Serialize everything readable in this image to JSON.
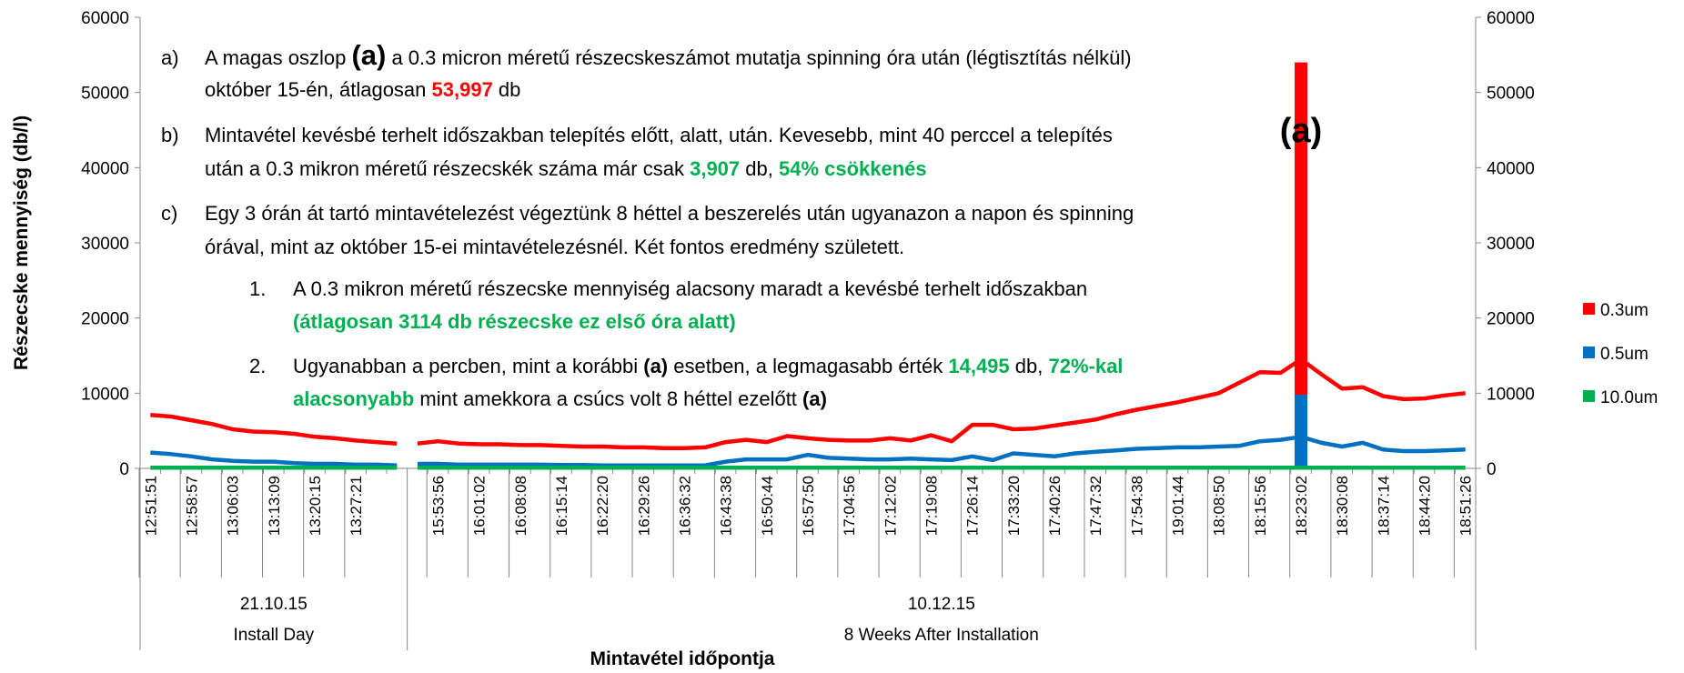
{
  "chart_data": {
    "type": "line",
    "xlabel": "Mintavétel időpontja",
    "ylabel": "Részecske mennyiség (db/l)",
    "ylim": [
      0,
      60000
    ],
    "yticks": [
      0,
      10000,
      20000,
      30000,
      40000,
      50000,
      60000
    ],
    "y2lim": [
      0,
      60000
    ],
    "y2ticks": [
      0,
      10000,
      20000,
      30000,
      40000,
      50000,
      60000
    ],
    "legend": "right",
    "groups": [
      {
        "name": "21.10.15",
        "label": "Install Day",
        "categories": [
          "12:51:51",
          null,
          "12:58:57",
          null,
          "13:06:03",
          null,
          "13:13:09",
          null,
          "13:20:15",
          null,
          "13:27:21",
          null,
          null
        ]
      },
      {
        "name": "10.12.15",
        "label": "8 Weeks After Installation",
        "categories": [
          null,
          "15:53:56",
          null,
          "16:01:02",
          null,
          "16:08:08",
          null,
          "16:15:14",
          null,
          "16:22:20",
          null,
          "16:29:26",
          null,
          "16:36:32",
          null,
          "16:43:38",
          null,
          "16:50:44",
          null,
          "16:57:50",
          null,
          "17:04:56",
          null,
          "17:12:02",
          null,
          "17:19:08",
          null,
          "17:26:14",
          null,
          "17:33:20",
          null,
          "17:40:26",
          null,
          "17:47:32",
          null,
          "17:54:38",
          null,
          "19:01:44",
          null,
          "18:08:50",
          null,
          "18:15:56",
          null,
          "18:23:02",
          null,
          "18:30:08",
          null,
          "18:37:14",
          null,
          "18:44:20",
          null,
          "18:51:26"
        ]
      }
    ],
    "series": [
      {
        "name": "0.3um",
        "color": "#ff0000",
        "values": [
          7100,
          6900,
          6400,
          5900,
          5200,
          4900,
          4800,
          4600,
          4200,
          4000,
          3700,
          3500,
          3300,
          3300,
          3600,
          3300,
          3200,
          3200,
          3100,
          3100,
          3000,
          2900,
          2900,
          2800,
          2800,
          2700,
          2700,
          2800,
          3500,
          3800,
          3500,
          4300,
          4000,
          3800,
          3700,
          3700,
          4000,
          3700,
          4400,
          3600,
          5800,
          5800,
          5200,
          5300,
          5700,
          6100,
          6500,
          7200,
          7800,
          8300,
          8800,
          9400,
          10000,
          11400,
          12800,
          12700,
          14500,
          12500,
          10600,
          10800,
          9600,
          9200,
          9300,
          9700,
          10000
        ],
        "bar_values": [
          null,
          null,
          null,
          null,
          null,
          null,
          null,
          null,
          null,
          null,
          null,
          null,
          null,
          null,
          null,
          null,
          null,
          null,
          null,
          null,
          null,
          null,
          null,
          null,
          null,
          null,
          null,
          null,
          null,
          null,
          null,
          null,
          null,
          null,
          null,
          null,
          null,
          null,
          null,
          null,
          null,
          null,
          null,
          null,
          null,
          null,
          null,
          null,
          null,
          null,
          null,
          null,
          null,
          null,
          null,
          null,
          53997,
          null,
          null,
          null,
          null,
          null,
          null,
          null,
          null
        ]
      },
      {
        "name": "0.5um",
        "color": "#0070c0",
        "values": [
          2100,
          1900,
          1600,
          1200,
          1000,
          900,
          900,
          700,
          600,
          600,
          500,
          500,
          400,
          600,
          600,
          500,
          500,
          500,
          500,
          500,
          450,
          450,
          400,
          400,
          400,
          400,
          400,
          400,
          900,
          1200,
          1200,
          1200,
          1800,
          1400,
          1300,
          1200,
          1200,
          1300,
          1200,
          1100,
          1600,
          1100,
          2000,
          1800,
          1600,
          2000,
          2200,
          2400,
          2600,
          2700,
          2800,
          2800,
          2900,
          3000,
          3600,
          3800,
          4200,
          3400,
          2900,
          3400,
          2500,
          2300,
          2300,
          2400,
          2500
        ],
        "bar_values": [
          null,
          null,
          null,
          null,
          null,
          null,
          null,
          null,
          null,
          null,
          null,
          null,
          null,
          null,
          null,
          null,
          null,
          null,
          null,
          null,
          null,
          null,
          null,
          null,
          null,
          null,
          null,
          null,
          null,
          null,
          null,
          null,
          null,
          null,
          null,
          null,
          null,
          null,
          null,
          null,
          null,
          null,
          null,
          null,
          null,
          null,
          null,
          null,
          null,
          null,
          null,
          null,
          null,
          null,
          null,
          null,
          9800,
          null,
          null,
          null,
          null,
          null,
          null,
          null,
          null
        ]
      },
      {
        "name": "10.0um",
        "color": "#00b050",
        "values": [
          100,
          100,
          100,
          100,
          100,
          100,
          100,
          100,
          100,
          100,
          100,
          100,
          100,
          100,
          100,
          100,
          100,
          100,
          100,
          100,
          100,
          100,
          100,
          100,
          100,
          100,
          100,
          100,
          100,
          100,
          100,
          100,
          100,
          100,
          100,
          100,
          100,
          100,
          100,
          100,
          100,
          100,
          100,
          100,
          100,
          100,
          100,
          100,
          100,
          100,
          100,
          100,
          100,
          100,
          100,
          100,
          100,
          100,
          100,
          100,
          100,
          100,
          100,
          100,
          100
        ]
      }
    ],
    "bar_label": "(a)",
    "notes": [
      {
        "marker": "a)",
        "lines": [
          [
            {
              "text": "A magas oszlop "
            },
            {
              "text": "(a)",
              "style": "bold-large"
            },
            {
              "text": " a 0.3 micron méretű részecskeszámot mutatja spinning óra után (légtisztítás nélkül)"
            }
          ],
          [
            {
              "text": "október 15-én, átlagosan "
            },
            {
              "text": "53,997",
              "style": "bold-red"
            },
            {
              "text": " db"
            }
          ]
        ]
      },
      {
        "marker": "b)",
        "lines": [
          [
            {
              "text": "Mintavétel kevésbé terhelt időszakban telepítés előtt, alatt, után. Kevesebb, mint 40 perccel a telepítés"
            }
          ],
          [
            {
              "text": "után a 0.3 mikron méretű részecskék száma már csak "
            },
            {
              "text": "3,907",
              "style": "bold-green"
            },
            {
              "text": " db, "
            },
            {
              "text": "54% csökkenés",
              "style": "bold-green"
            }
          ]
        ]
      },
      {
        "marker": "c)",
        "lines": [
          [
            {
              "text": "Egy 3 órán át tartó mintavételezést végeztünk 8 héttel a beszerelés után ugyanazon a napon és spinning"
            }
          ],
          [
            {
              "text": "órával, mint az október 15-ei mintavételezésnél. Két fontos eredmény született."
            }
          ]
        ],
        "items": [
          {
            "marker": "1.",
            "lines": [
              [
                {
                  "text": "A 0.3 mikron méretű részecske mennyiség alacsony maradt a kevésbé terhelt időszakban"
                }
              ],
              [
                {
                  "text": "(átlagosan 3114 db részecske ez első óra alatt)",
                  "style": "bold-green"
                }
              ]
            ]
          },
          {
            "marker": "2.",
            "lines": [
              [
                {
                  "text": "Ugyanabban a percben, mint a korábbi "
                },
                {
                  "text": "(a)",
                  "style": "bold"
                },
                {
                  "text": " esetben, a legmagasabb érték "
                },
                {
                  "text": "14,495",
                  "style": "bold-green"
                },
                {
                  "text": " db, "
                },
                {
                  "text": "72%-kal",
                  "style": "bold-green"
                }
              ],
              [
                {
                  "text": "alacsonyabb",
                  "style": "bold-green"
                },
                {
                  "text": " mint amekkora a csúcs volt 8 héttel ezelőtt "
                },
                {
                  "text": "(a)",
                  "style": "bold"
                }
              ]
            ]
          }
        ]
      }
    ]
  }
}
